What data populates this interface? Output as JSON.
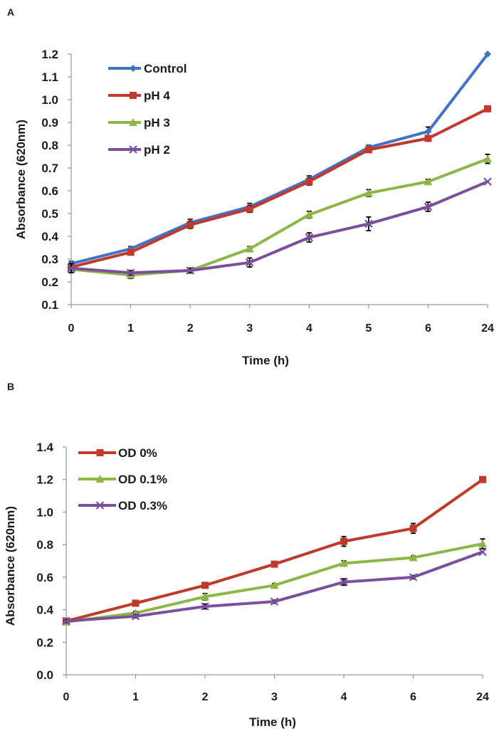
{
  "figure": {
    "panels": [
      {
        "letter": "A"
      },
      {
        "letter": "B"
      }
    ]
  },
  "chart_data": [
    {
      "type": "line",
      "panel": "A",
      "title": "",
      "xlabel": "Time (h)",
      "ylabel": "Absorbance (620nm)",
      "categories": [
        "0",
        "1",
        "2",
        "3",
        "4",
        "5",
        "6",
        "24"
      ],
      "ylim": [
        0.1,
        1.2
      ],
      "yticks": [
        "0.1",
        "0.2",
        "0.3",
        "0.4",
        "0.5",
        "0.6",
        "0.7",
        "0.8",
        "0.9",
        "1.0",
        "1.1",
        "1.2"
      ],
      "grid": false,
      "legend_position": "top-left",
      "series": [
        {
          "name": "Control",
          "color": "#4472C4",
          "marker": "diamond",
          "values": [
            0.28,
            0.345,
            0.46,
            0.53,
            0.65,
            0.79,
            0.86,
            1.2
          ],
          "errors": [
            0.01,
            0.01,
            0.015,
            0.015,
            0.015,
            0.01,
            0.02,
            0.0
          ]
        },
        {
          "name": "pH 4",
          "color": "#C0392B",
          "marker": "square",
          "values": [
            0.265,
            0.33,
            0.45,
            0.52,
            0.64,
            0.78,
            0.83,
            0.96
          ],
          "errors": [
            0.01,
            0.01,
            0.015,
            0.015,
            0.015,
            0.01,
            0.01,
            0.0
          ]
        },
        {
          "name": "pH 3",
          "color": "#8DB646",
          "marker": "triangle",
          "values": [
            0.255,
            0.23,
            0.25,
            0.345,
            0.495,
            0.59,
            0.64,
            0.74
          ],
          "errors": [
            0.01,
            0.015,
            0.01,
            0.01,
            0.015,
            0.015,
            0.01,
            0.02
          ]
        },
        {
          "name": "pH 2",
          "color": "#7A4F9E",
          "marker": "x",
          "values": [
            0.26,
            0.24,
            0.25,
            0.285,
            0.395,
            0.455,
            0.53,
            0.64
          ],
          "errors": [
            0.02,
            0.01,
            0.01,
            0.02,
            0.02,
            0.03,
            0.02,
            0.0
          ]
        }
      ]
    },
    {
      "type": "line",
      "panel": "B",
      "title": "",
      "xlabel": "Time (h)",
      "ylabel": "Absorbance  (620nm)",
      "categories": [
        "0",
        "1",
        "2",
        "3",
        "4",
        "6",
        "24"
      ],
      "ylim": [
        0.0,
        1.4
      ],
      "yticks": [
        "0.0",
        "0.2",
        "0.4",
        "0.6",
        "0.8",
        "1.0",
        "1.2",
        "1.4"
      ],
      "grid": false,
      "legend_position": "top-left",
      "series": [
        {
          "name": "OD 0%",
          "color": "#C0392B",
          "marker": "square",
          "values": [
            0.33,
            0.44,
            0.55,
            0.68,
            0.82,
            0.9,
            1.2
          ],
          "errors": [
            0.01,
            0.01,
            0.015,
            0.01,
            0.03,
            0.03,
            0.0
          ]
        },
        {
          "name": "OD 0.1%",
          "color": "#8DB646",
          "marker": "triangle",
          "values": [
            0.325,
            0.38,
            0.48,
            0.55,
            0.685,
            0.72,
            0.805
          ],
          "errors": [
            0.01,
            0.01,
            0.02,
            0.01,
            0.015,
            0.01,
            0.03
          ]
        },
        {
          "name": "OD 0.3%",
          "color": "#7A4F9E",
          "marker": "x",
          "values": [
            0.33,
            0.36,
            0.42,
            0.45,
            0.57,
            0.6,
            0.755
          ],
          "errors": [
            0.01,
            0.01,
            0.015,
            0.01,
            0.02,
            0.01,
            0.0
          ]
        }
      ]
    }
  ]
}
